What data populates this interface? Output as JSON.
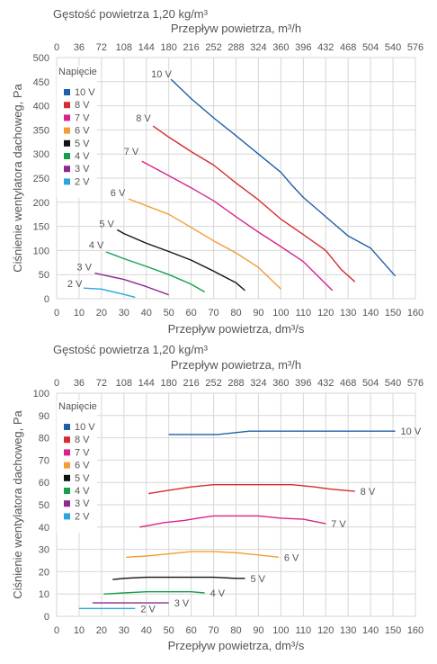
{
  "chart_data": [
    {
      "type": "line",
      "density_label": "Gęstość powietrza 1,20 kg/m³",
      "top_axis_label": "Przepływ powietrza, m³/h",
      "top_ticks": [
        "0",
        "36",
        "72",
        "108",
        "144",
        "180",
        "216",
        "252",
        "288",
        "324",
        "360",
        "396",
        "432",
        "468",
        "504",
        "540",
        "576"
      ],
      "xlabel": "Przepływ powietrza, dm³/s",
      "ylabel": "Ciśnienie wentylatora dachoweg, Pa",
      "xlim": [
        0,
        160
      ],
      "ylim": [
        0,
        500
      ],
      "xticks": [
        "0",
        "10",
        "20",
        "30",
        "40",
        "50",
        "60",
        "70",
        "80",
        "90",
        "100",
        "110",
        "120",
        "130",
        "140",
        "150",
        "160"
      ],
      "yticks": [
        "0",
        "50",
        "100",
        "150",
        "200",
        "250",
        "300",
        "350",
        "400",
        "450",
        "500"
      ],
      "legend_title": "Napięcie",
      "grid": true,
      "series": [
        {
          "name": "10 V",
          "label": "10 V",
          "color": "#1f5fa8",
          "x": [
            51,
            60,
            70,
            80,
            90,
            100,
            105,
            110,
            120,
            130,
            140,
            151
          ],
          "y": [
            455,
            415,
            375,
            338,
            300,
            262,
            235,
            210,
            170,
            130,
            105,
            47
          ]
        },
        {
          "name": "8 V",
          "label": "8 V",
          "color": "#d62c2c",
          "x": [
            43,
            50,
            60,
            70,
            80,
            90,
            100,
            110,
            120,
            127,
            133
          ],
          "y": [
            358,
            335,
            305,
            277,
            240,
            205,
            165,
            133,
            100,
            60,
            35
          ]
        },
        {
          "name": "7 V",
          "label": "7 V",
          "color": "#d8248a",
          "x": [
            38,
            40,
            50,
            60,
            70,
            80,
            90,
            100,
            110,
            123
          ],
          "y": [
            285,
            280,
            255,
            230,
            203,
            170,
            138,
            108,
            77,
            17
          ]
        },
        {
          "name": "6 V",
          "label": "6 V",
          "color": "#f39c34",
          "x": [
            32,
            40,
            50,
            60,
            70,
            80,
            90,
            100
          ],
          "y": [
            207,
            193,
            175,
            148,
            120,
            95,
            65,
            20
          ]
        },
        {
          "name": "5 V",
          "label": "5 V",
          "color": "#111111",
          "x": [
            27,
            30,
            40,
            50,
            60,
            70,
            80,
            84
          ],
          "y": [
            143,
            135,
            115,
            98,
            80,
            57,
            33,
            17
          ]
        },
        {
          "name": "4 V",
          "label": "4 V",
          "color": "#16a04a",
          "x": [
            22,
            30,
            40,
            50,
            60,
            66
          ],
          "y": [
            97,
            83,
            67,
            50,
            30,
            14
          ]
        },
        {
          "name": "3 V",
          "label": "3 V",
          "color": "#8d2a8e",
          "x": [
            17,
            20,
            30,
            40,
            50
          ],
          "y": [
            53,
            50,
            40,
            25,
            8
          ]
        },
        {
          "name": "2 V",
          "label": "2 V",
          "color": "#2aa7de",
          "x": [
            12,
            20,
            30,
            35
          ],
          "y": [
            22,
            20,
            9,
            3
          ]
        }
      ]
    },
    {
      "type": "line",
      "density_label": "Gęstość powietrza 1,20 kg/m³",
      "top_axis_label": "Przepływ powietrza, m³/h",
      "top_ticks": [
        "0",
        "36",
        "72",
        "108",
        "144",
        "180",
        "216",
        "252",
        "288",
        "324",
        "360",
        "396",
        "432",
        "468",
        "504",
        "540",
        "576"
      ],
      "xlabel": "Przepływ powietrza, dm³/s",
      "ylabel": "Ciśnienie wentylatora dachoweg, Pa",
      "xlim": [
        0,
        160
      ],
      "ylim": [
        0,
        100
      ],
      "xticks": [
        "0",
        "10",
        "20",
        "30",
        "40",
        "50",
        "60",
        "70",
        "80",
        "90",
        "100",
        "110",
        "120",
        "130",
        "140",
        "150",
        "160"
      ],
      "yticks": [
        "0",
        "10",
        "20",
        "30",
        "40",
        "50",
        "60",
        "70",
        "80",
        "90",
        "100"
      ],
      "legend_title": "Napięcie",
      "grid": true,
      "series": [
        {
          "name": "10 V",
          "label": "10 V",
          "color": "#1f5fa8",
          "x": [
            50,
            60,
            72,
            86,
            100,
            110,
            120,
            130,
            140,
            151
          ],
          "y": [
            81.5,
            81.5,
            81.5,
            83,
            83,
            83,
            83,
            83,
            83,
            83
          ]
        },
        {
          "name": "8 V",
          "label": "8 V",
          "color": "#d62c2c",
          "x": [
            41,
            50,
            60,
            70,
            80,
            90,
            100,
            105,
            115,
            122,
            133
          ],
          "y": [
            55,
            56.5,
            58,
            59,
            59,
            59,
            59,
            59,
            58,
            57,
            56
          ]
        },
        {
          "name": "7 V",
          "label": "7 V",
          "color": "#d8248a",
          "x": [
            37,
            40,
            48,
            57,
            63,
            70,
            80,
            90,
            100,
            110,
            120
          ],
          "y": [
            40,
            40.5,
            42,
            43,
            44,
            45,
            45,
            45,
            44,
            43.5,
            41.5
          ]
        },
        {
          "name": "6 V",
          "label": "6 V",
          "color": "#f39c34",
          "x": [
            31,
            40,
            50,
            60,
            70,
            80,
            90,
            99
          ],
          "y": [
            26.5,
            27,
            28,
            29,
            29,
            28.5,
            27.5,
            26.5
          ]
        },
        {
          "name": "5 V",
          "label": "5 V",
          "color": "#111111",
          "x": [
            25,
            30,
            40,
            50,
            60,
            70,
            80,
            84
          ],
          "y": [
            16.5,
            17,
            17.5,
            17.5,
            17.5,
            17.5,
            17,
            17
          ]
        },
        {
          "name": "4 V",
          "label": "4 V",
          "color": "#16a04a",
          "x": [
            21,
            30,
            40,
            50,
            60,
            66
          ],
          "y": [
            10,
            10.5,
            11,
            11,
            11,
            10.5
          ]
        },
        {
          "name": "3 V",
          "label": "3 V",
          "color": "#8d2a8e",
          "x": [
            16,
            20,
            30,
            40,
            50
          ],
          "y": [
            6,
            6,
            6,
            6,
            6
          ]
        },
        {
          "name": "2 V",
          "label": "2 V",
          "color": "#2aa7de",
          "x": [
            10,
            20,
            30,
            35
          ],
          "y": [
            3.5,
            3.5,
            3.5,
            3.5
          ]
        }
      ]
    }
  ]
}
